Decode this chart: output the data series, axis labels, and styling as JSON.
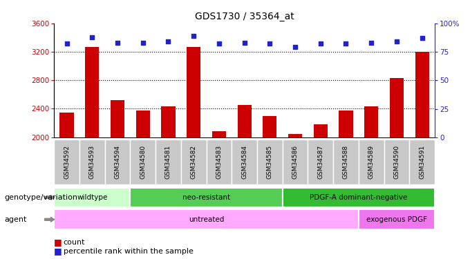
{
  "title": "GDS1730 / 35364_at",
  "samples": [
    "GSM34592",
    "GSM34593",
    "GSM34594",
    "GSM34580",
    "GSM34581",
    "GSM34582",
    "GSM34583",
    "GSM34584",
    "GSM34585",
    "GSM34586",
    "GSM34587",
    "GSM34588",
    "GSM34589",
    "GSM34590",
    "GSM34591"
  ],
  "counts": [
    2350,
    3270,
    2520,
    2380,
    2430,
    3270,
    2080,
    2450,
    2300,
    2050,
    2180,
    2380,
    2430,
    2830,
    3200
  ],
  "percentiles": [
    82,
    88,
    83,
    83,
    84,
    89,
    82,
    83,
    82,
    79,
    82,
    82,
    83,
    84,
    87
  ],
  "ymin": 2000,
  "ymax": 3600,
  "yticks": [
    2000,
    2400,
    2800,
    3200,
    3600
  ],
  "right_yticks": [
    0,
    25,
    50,
    75,
    100
  ],
  "bar_color": "#cc0000",
  "dot_color": "#2222cc",
  "grid_color": "#000000",
  "bg_color": "#ffffff",
  "label_bg_color": "#c8c8c8",
  "genotype_groups": [
    {
      "label": "wildtype",
      "start": 0,
      "end": 3,
      "color": "#ccffcc"
    },
    {
      "label": "neo-resistant",
      "start": 3,
      "end": 9,
      "color": "#55cc55"
    },
    {
      "label": "PDGF-A dominant-negative",
      "start": 9,
      "end": 15,
      "color": "#33bb33"
    }
  ],
  "agent_groups": [
    {
      "label": "untreated",
      "start": 0,
      "end": 12,
      "color": "#ffaaff"
    },
    {
      "label": "exogenous PDGF",
      "start": 12,
      "end": 15,
      "color": "#ee77ee"
    }
  ],
  "legend_count_label": "count",
  "legend_percentile_label": "percentile rank within the sample",
  "genotype_label": "genotype/variation",
  "agent_label": "agent"
}
